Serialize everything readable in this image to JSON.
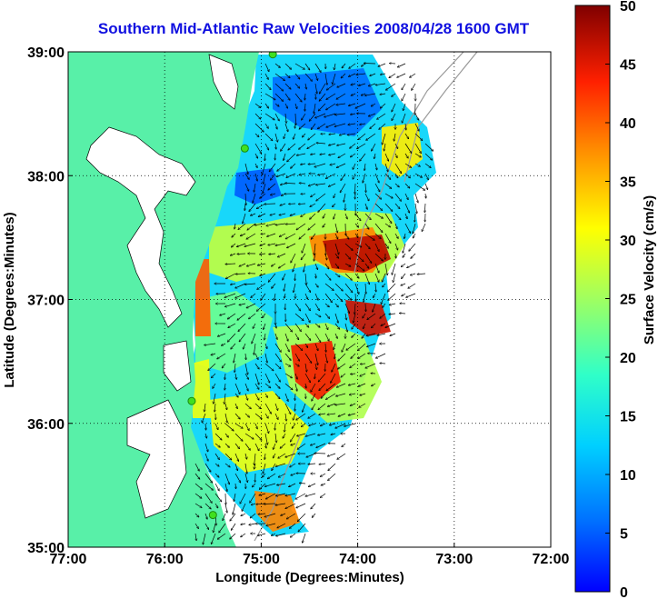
{
  "title": "Southern Mid-Atlantic Raw Velocities 2008/04/28 1600 GMT",
  "x_axis": {
    "label": "Longitude (Degrees:Minutes)",
    "ticks": [
      "77:00",
      "76:00",
      "75:00",
      "74:00",
      "73:00",
      "72:00"
    ]
  },
  "y_axis": {
    "label": "Latitude (Degrees:Minutes)",
    "ticks": [
      "39:00",
      "38:00",
      "37:00",
      "36:00",
      "35:00"
    ]
  },
  "colorbar": {
    "label": "Surface Velocity (cm/s)",
    "ticks": [
      "50",
      "45",
      "40",
      "35",
      "30",
      "25",
      "20",
      "15",
      "10",
      "5",
      "0"
    ],
    "min": 0,
    "max": 50,
    "colormap": "jet"
  },
  "map": {
    "lon_range": [
      -77,
      -72
    ],
    "lat_range": [
      35,
      39
    ],
    "grid": "dotted",
    "land_color": "#58f0a8",
    "station_color": "#40e020",
    "arrow_color": "#000000",
    "stations": [
      {
        "lon": -74.88,
        "lat": 38.98
      },
      {
        "lon": -75.17,
        "lat": 38.22
      },
      {
        "lon": -75.72,
        "lat": 36.18
      },
      {
        "lon": -75.5,
        "lat": 35.26
      }
    ]
  }
}
